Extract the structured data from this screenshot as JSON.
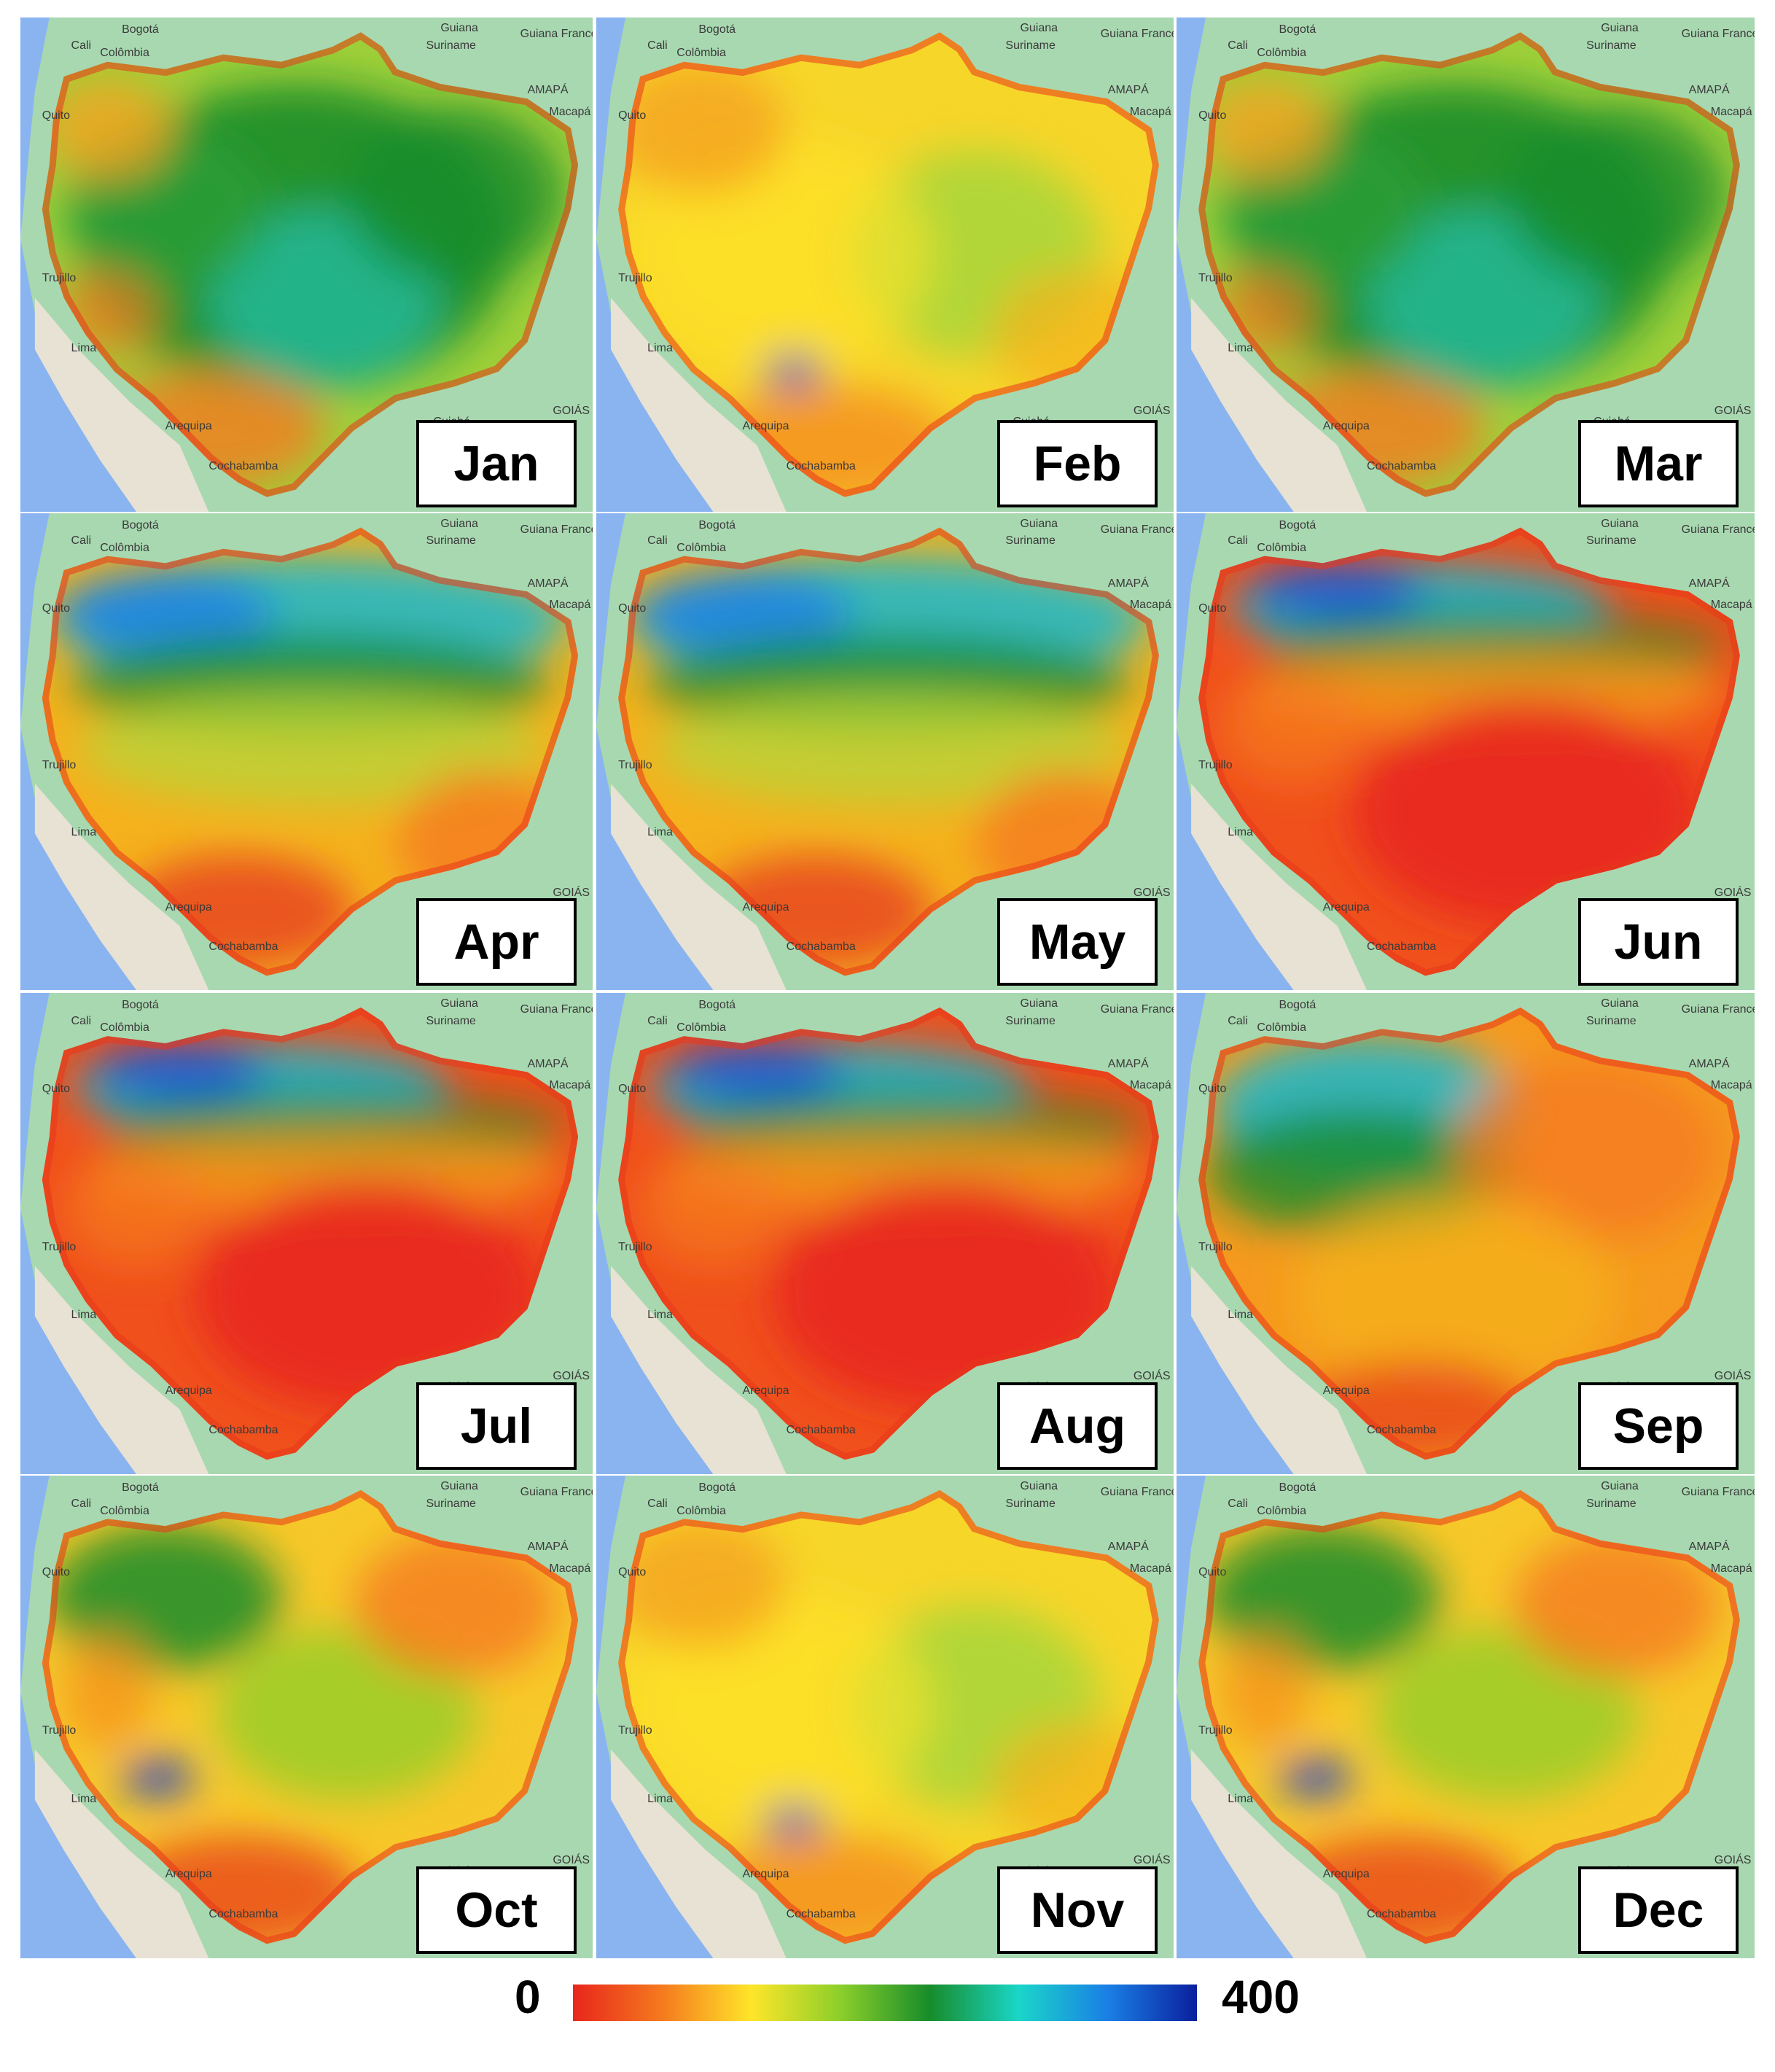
{
  "panels": [
    {
      "month": "Jan",
      "pattern": "wet-center"
    },
    {
      "month": "Feb",
      "pattern": "moderate"
    },
    {
      "month": "Mar",
      "pattern": "wet-center"
    },
    {
      "month": "Apr",
      "pattern": "wet-north"
    },
    {
      "month": "May",
      "pattern": "wet-north"
    },
    {
      "month": "Jun",
      "pattern": "dry-south"
    },
    {
      "month": "Jul",
      "pattern": "dry-south"
    },
    {
      "month": "Aug",
      "pattern": "dry-south"
    },
    {
      "month": "Sep",
      "pattern": "dry-east"
    },
    {
      "month": "Oct",
      "pattern": "mixed"
    },
    {
      "month": "Nov",
      "pattern": "moderate"
    },
    {
      "month": "Dec",
      "pattern": "mixed"
    }
  ],
  "basemap_labels": {
    "colombia": "Colômbia",
    "suriname": "Suriname",
    "guiana": "Guiana",
    "guiana_francesa": "Guiana Francesa",
    "bogota": "Bogotá",
    "cali": "Cali",
    "quito": "Quito",
    "lima": "Lima",
    "trujillo": "Trujillo",
    "arequipa": "Arequipa",
    "cochabamba": "Cochabamba",
    "cuiaba": "Cuiabá",
    "macapa": "Macapá",
    "amapa": "AMAPÁ",
    "goias": "GOIÁS"
  },
  "legend": {
    "min": "0",
    "max": "400",
    "colors": [
      "#e8261c",
      "#f57a1e",
      "#ffe52a",
      "#8ccf2a",
      "#178c2a",
      "#1ad6c8",
      "#1a7fe6",
      "#0a1f9e"
    ]
  },
  "colors": {
    "ocean": "#8ab4f0",
    "land": "#a8d8b0",
    "andes": "#e8e2d4"
  }
}
